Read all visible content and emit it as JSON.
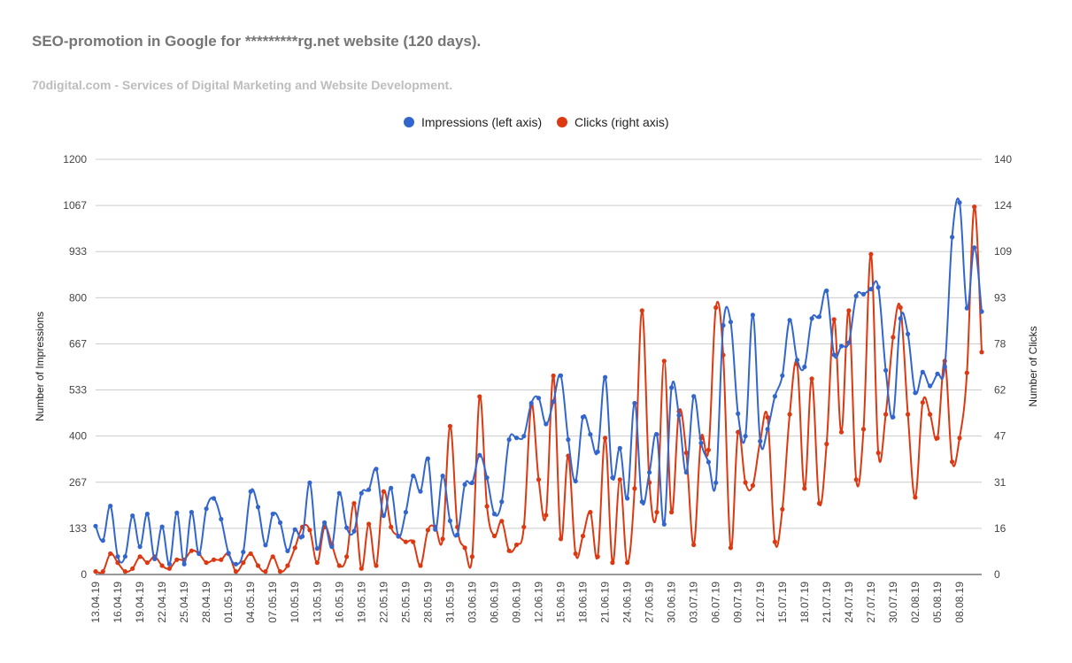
{
  "header": {
    "title": "SEO-promotion in Google for *********rg.net website (120 days).",
    "subtitle": "70digital.com - Services of Digital Marketing and Website Development."
  },
  "chart_data": {
    "type": "line",
    "start_date": "2019-04-13",
    "x_tick_labels": [
      "13.04.19",
      "16.04.19",
      "19.04.19",
      "22.04.19",
      "25.04.19",
      "28.04.19",
      "01.05.19",
      "04.05.19",
      "07.05.19",
      "10.05.19",
      "13.05.19",
      "16.05.19",
      "19.05.19",
      "22.05.19",
      "25.05.19",
      "28.05.19",
      "31.05.19",
      "03.06.19",
      "06.06.19",
      "09.06.19",
      "12.06.19",
      "15.06.19",
      "18.06.19",
      "21.06.19",
      "24.06.19",
      "27.06.19",
      "30.06.19",
      "03.07.19",
      "06.07.19",
      "09.07.19",
      "12.07.19",
      "15.07.19",
      "18.07.19",
      "21.07.19",
      "24.07.19",
      "27.07.19",
      "30.07.19",
      "02.08.19",
      "05.08.19",
      "08.08.19"
    ],
    "y_left": {
      "label": "Number of Impressions",
      "ticks": [
        "0",
        "133",
        "267",
        "400",
        "533",
        "667",
        "800",
        "933",
        "1067",
        "1200"
      ],
      "range": [
        0,
        1200
      ]
    },
    "y_right": {
      "label": "Number of Clicks",
      "ticks": [
        "0",
        "16",
        "31",
        "47",
        "62",
        "78",
        "93",
        "109",
        "124",
        "140"
      ],
      "range": [
        0,
        140
      ]
    },
    "legend_position": "top-center",
    "grid": true,
    "series": [
      {
        "name": "Impressions (left axis)",
        "axis": "left",
        "color": "#3366cc",
        "values": [
          140,
          98,
          198,
          52,
          52,
          170,
          80,
          175,
          45,
          138,
          30,
          178,
          30,
          180,
          60,
          190,
          220,
          160,
          62,
          30,
          65,
          240,
          195,
          85,
          175,
          150,
          68,
          130,
          110,
          265,
          75,
          150,
          80,
          235,
          135,
          125,
          235,
          245,
          305,
          170,
          250,
          110,
          180,
          285,
          240,
          335,
          130,
          285,
          155,
          115,
          260,
          265,
          345,
          280,
          175,
          210,
          390,
          395,
          400,
          495,
          510,
          435,
          500,
          575,
          390,
          270,
          455,
          405,
          355,
          570,
          280,
          365,
          220,
          495,
          210,
          295,
          405,
          145,
          540,
          460,
          295,
          515,
          380,
          325,
          265,
          720,
          730,
          465,
          400,
          750,
          385,
          420,
          515,
          575,
          735,
          620,
          600,
          740,
          745,
          820,
          635,
          660,
          670,
          805,
          810,
          825,
          830,
          590,
          455,
          740,
          695,
          525,
          585,
          545,
          580,
          600,
          975,
          1075,
          770,
          945,
          760
        ]
      },
      {
        "name": "Clicks (right axis)",
        "axis": "right",
        "color": "#dc3912",
        "values": [
          1,
          1,
          7,
          4,
          1,
          2,
          6,
          4,
          6,
          3,
          2,
          5,
          5,
          8,
          7,
          4,
          5,
          5,
          7,
          1,
          4,
          7,
          3,
          1,
          6,
          1,
          3,
          9,
          16,
          15,
          4,
          16,
          10,
          3,
          6,
          24,
          2,
          17,
          3,
          28,
          16,
          13,
          11,
          11,
          3,
          15,
          16,
          12,
          50,
          16,
          9,
          6,
          60,
          23,
          13,
          18,
          8,
          10,
          16,
          57,
          32,
          20,
          67,
          12,
          40,
          7,
          13,
          21,
          6,
          46,
          4,
          32,
          4,
          29,
          89,
          31,
          21,
          72,
          21,
          55,
          41,
          10,
          46,
          42,
          90,
          74,
          9,
          48,
          31,
          30,
          45,
          53,
          11,
          22,
          54,
          71,
          29,
          66,
          24,
          44,
          86,
          48,
          89,
          32,
          49,
          108,
          41,
          54,
          80,
          90,
          54,
          26,
          58,
          54,
          46,
          72,
          38,
          46,
          68,
          124,
          75
        ]
      }
    ]
  }
}
